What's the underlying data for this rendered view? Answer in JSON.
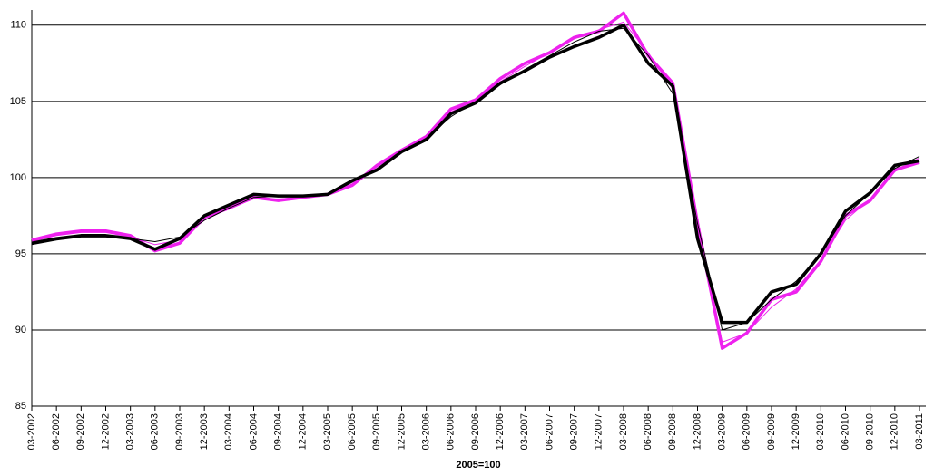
{
  "chart_data": {
    "type": "line",
    "categories": [
      "03-2002",
      "06-2002",
      "09-2002",
      "12-2002",
      "03-2003",
      "06-2003",
      "09-2003",
      "12-2003",
      "03-2004",
      "06-2004",
      "09-2004",
      "12-2004",
      "03-2005",
      "06-2005",
      "09-2005",
      "12-2005",
      "03-2006",
      "06-2006",
      "09-2006",
      "12-2006",
      "03-2007",
      "06-2007",
      "09-2007",
      "12-2007",
      "03-2008",
      "06-2008",
      "09-2008",
      "12-2008",
      "03-2009",
      "06-2009",
      "09-2009",
      "12-2009",
      "03-2010",
      "06-2010",
      "09-2010",
      "12-2010",
      "03-2011"
    ],
    "series": [
      {
        "color": "#ee22ee",
        "width": 3.5,
        "values": [
          95.9,
          96.3,
          96.5,
          96.5,
          96.2,
          95.2,
          95.7,
          97.4,
          98.0,
          98.7,
          98.5,
          98.7,
          98.9,
          99.5,
          100.8,
          101.8,
          102.7,
          104.5,
          105.1,
          106.5,
          107.5,
          108.2,
          109.2,
          109.6,
          110.8,
          108.0,
          106.2,
          97.0,
          88.8,
          89.8,
          92.0,
          92.5,
          94.5,
          97.5,
          98.5,
          100.5,
          101.0
        ]
      },
      {
        "color": "#ee22ee",
        "width": 1,
        "values": [
          95.8,
          96.2,
          96.4,
          96.4,
          96.1,
          95.6,
          95.9,
          97.2,
          98.0,
          98.6,
          98.6,
          98.7,
          98.9,
          99.6,
          100.7,
          101.8,
          102.7,
          104.3,
          105.1,
          106.3,
          107.3,
          108.2,
          109.1,
          109.7,
          110.2,
          108.2,
          105.8,
          96.5,
          89.2,
          89.8,
          91.5,
          92.7,
          94.6,
          97.2,
          98.6,
          100.4,
          101.3
        ]
      },
      {
        "color": "#000000",
        "width": 3.5,
        "values": [
          95.7,
          96.0,
          96.2,
          96.2,
          96.0,
          95.3,
          96.0,
          97.5,
          98.2,
          98.9,
          98.8,
          98.8,
          98.9,
          99.8,
          100.5,
          101.7,
          102.5,
          104.2,
          104.9,
          106.2,
          107.0,
          107.9,
          108.6,
          109.2,
          110.0,
          107.5,
          106.0,
          96.0,
          90.5,
          90.5,
          92.5,
          93.0,
          95.0,
          97.8,
          99.0,
          100.8,
          101.1
        ]
      },
      {
        "color": "#000000",
        "width": 1,
        "values": [
          95.6,
          95.9,
          96.1,
          96.1,
          96.0,
          95.8,
          96.1,
          97.2,
          98.0,
          98.7,
          98.8,
          98.8,
          98.9,
          99.7,
          100.6,
          101.7,
          102.6,
          104.0,
          105.0,
          106.1,
          107.1,
          108.0,
          108.9,
          109.6,
          109.8,
          108.0,
          105.5,
          97.0,
          90.0,
          90.5,
          92.0,
          93.2,
          95.0,
          97.5,
          99.0,
          100.6,
          101.4
        ]
      }
    ],
    "ylim": [
      85,
      111
    ],
    "yticks": [
      85,
      90,
      95,
      100,
      105,
      110
    ],
    "grid": true,
    "note": "2005=100"
  }
}
